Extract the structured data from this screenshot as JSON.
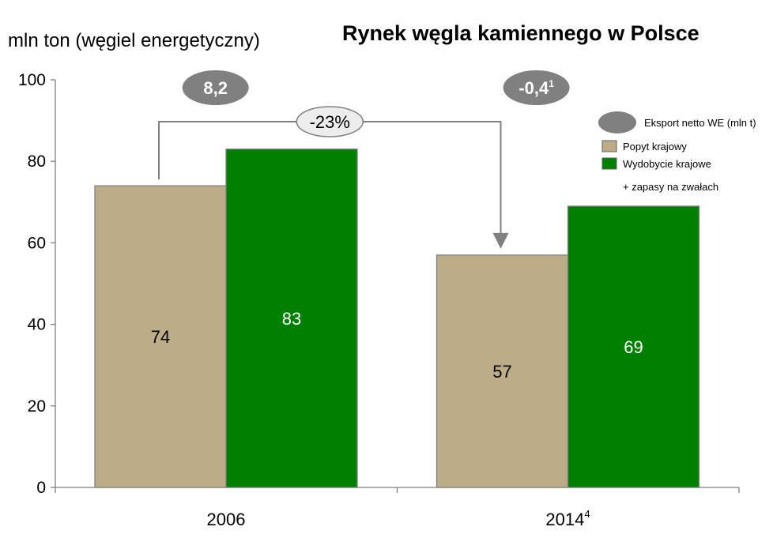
{
  "chart_data": {
    "type": "bar",
    "title": "Rynek węgla kamiennego w Polsce",
    "ylabel": "mln ton (węgiel energetyczny)",
    "ylim": [
      0,
      100
    ],
    "yticks": [
      0,
      20,
      40,
      60,
      80,
      100
    ],
    "categories": [
      {
        "label": "2006",
        "sup": ""
      },
      {
        "label": "2014",
        "sup": "4"
      }
    ],
    "series": [
      {
        "name": "Popyt krajowy",
        "color": "#bcad88",
        "label_color": "#000000",
        "values": [
          74,
          57
        ]
      },
      {
        "name": "Wydobycie krajowe",
        "color": "#008000",
        "label_color": "#ffffff",
        "values": [
          83,
          69
        ]
      }
    ],
    "value_labels": [
      [
        "74",
        "57"
      ],
      [
        "83",
        "69"
      ]
    ],
    "export_bubbles": [
      {
        "text": "8,2",
        "sup": ""
      },
      {
        "text": "-0,4",
        "sup": "1"
      }
    ],
    "change_annotation": "-23%",
    "legend": {
      "bubble_label": "Eksport netto WE (mln t)",
      "bubble_color": "#808080",
      "note": "+ zapasy na zwałach",
      "placement": "top-right"
    },
    "grid": false
  }
}
